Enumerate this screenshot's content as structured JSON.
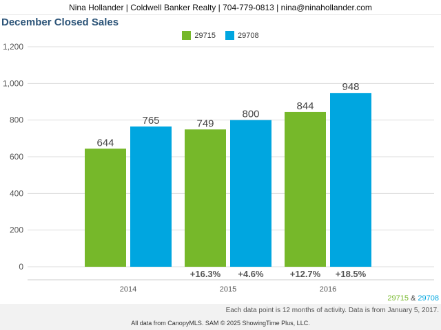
{
  "header": {
    "contact_line": "Nina Hollander | Coldwell Banker Realty | 704-779-0813 | nina@ninahollander.com"
  },
  "colors": {
    "green": "#76b82a",
    "blue": "#00a6e0",
    "title": "#2c5478",
    "grid": "#dddddd",
    "axis_text": "#555555"
  },
  "chart_data": {
    "type": "bar",
    "title": "December Closed Sales",
    "categories": [
      "2014",
      "2015",
      "2016"
    ],
    "series": [
      {
        "name": "29715",
        "values": [
          644,
          749,
          844
        ],
        "pct_change": [
          "",
          "+16.3%",
          "+12.7%"
        ]
      },
      {
        "name": "29708",
        "values": [
          765,
          800,
          948
        ],
        "pct_change": [
          "",
          "+4.6%",
          "+18.5%"
        ]
      }
    ],
    "ylim": [
      0,
      1200
    ],
    "yticks": [
      "0",
      "200",
      "400",
      "600",
      "800",
      "1,000",
      "1,200"
    ],
    "ytick_values": [
      0,
      200,
      400,
      600,
      800,
      1000,
      1200
    ],
    "xlabel": "",
    "ylabel": "",
    "grid": true,
    "legend": "top-center"
  },
  "footer": {
    "legend_a": "29715",
    "legend_amp": " & ",
    "legend_b": "29708",
    "note": "Each data point is 12 months of activity. Data is from January 5, 2017.",
    "source": "All data from CanopyMLS. SAM © 2025 ShowingTime Plus, LLC."
  }
}
